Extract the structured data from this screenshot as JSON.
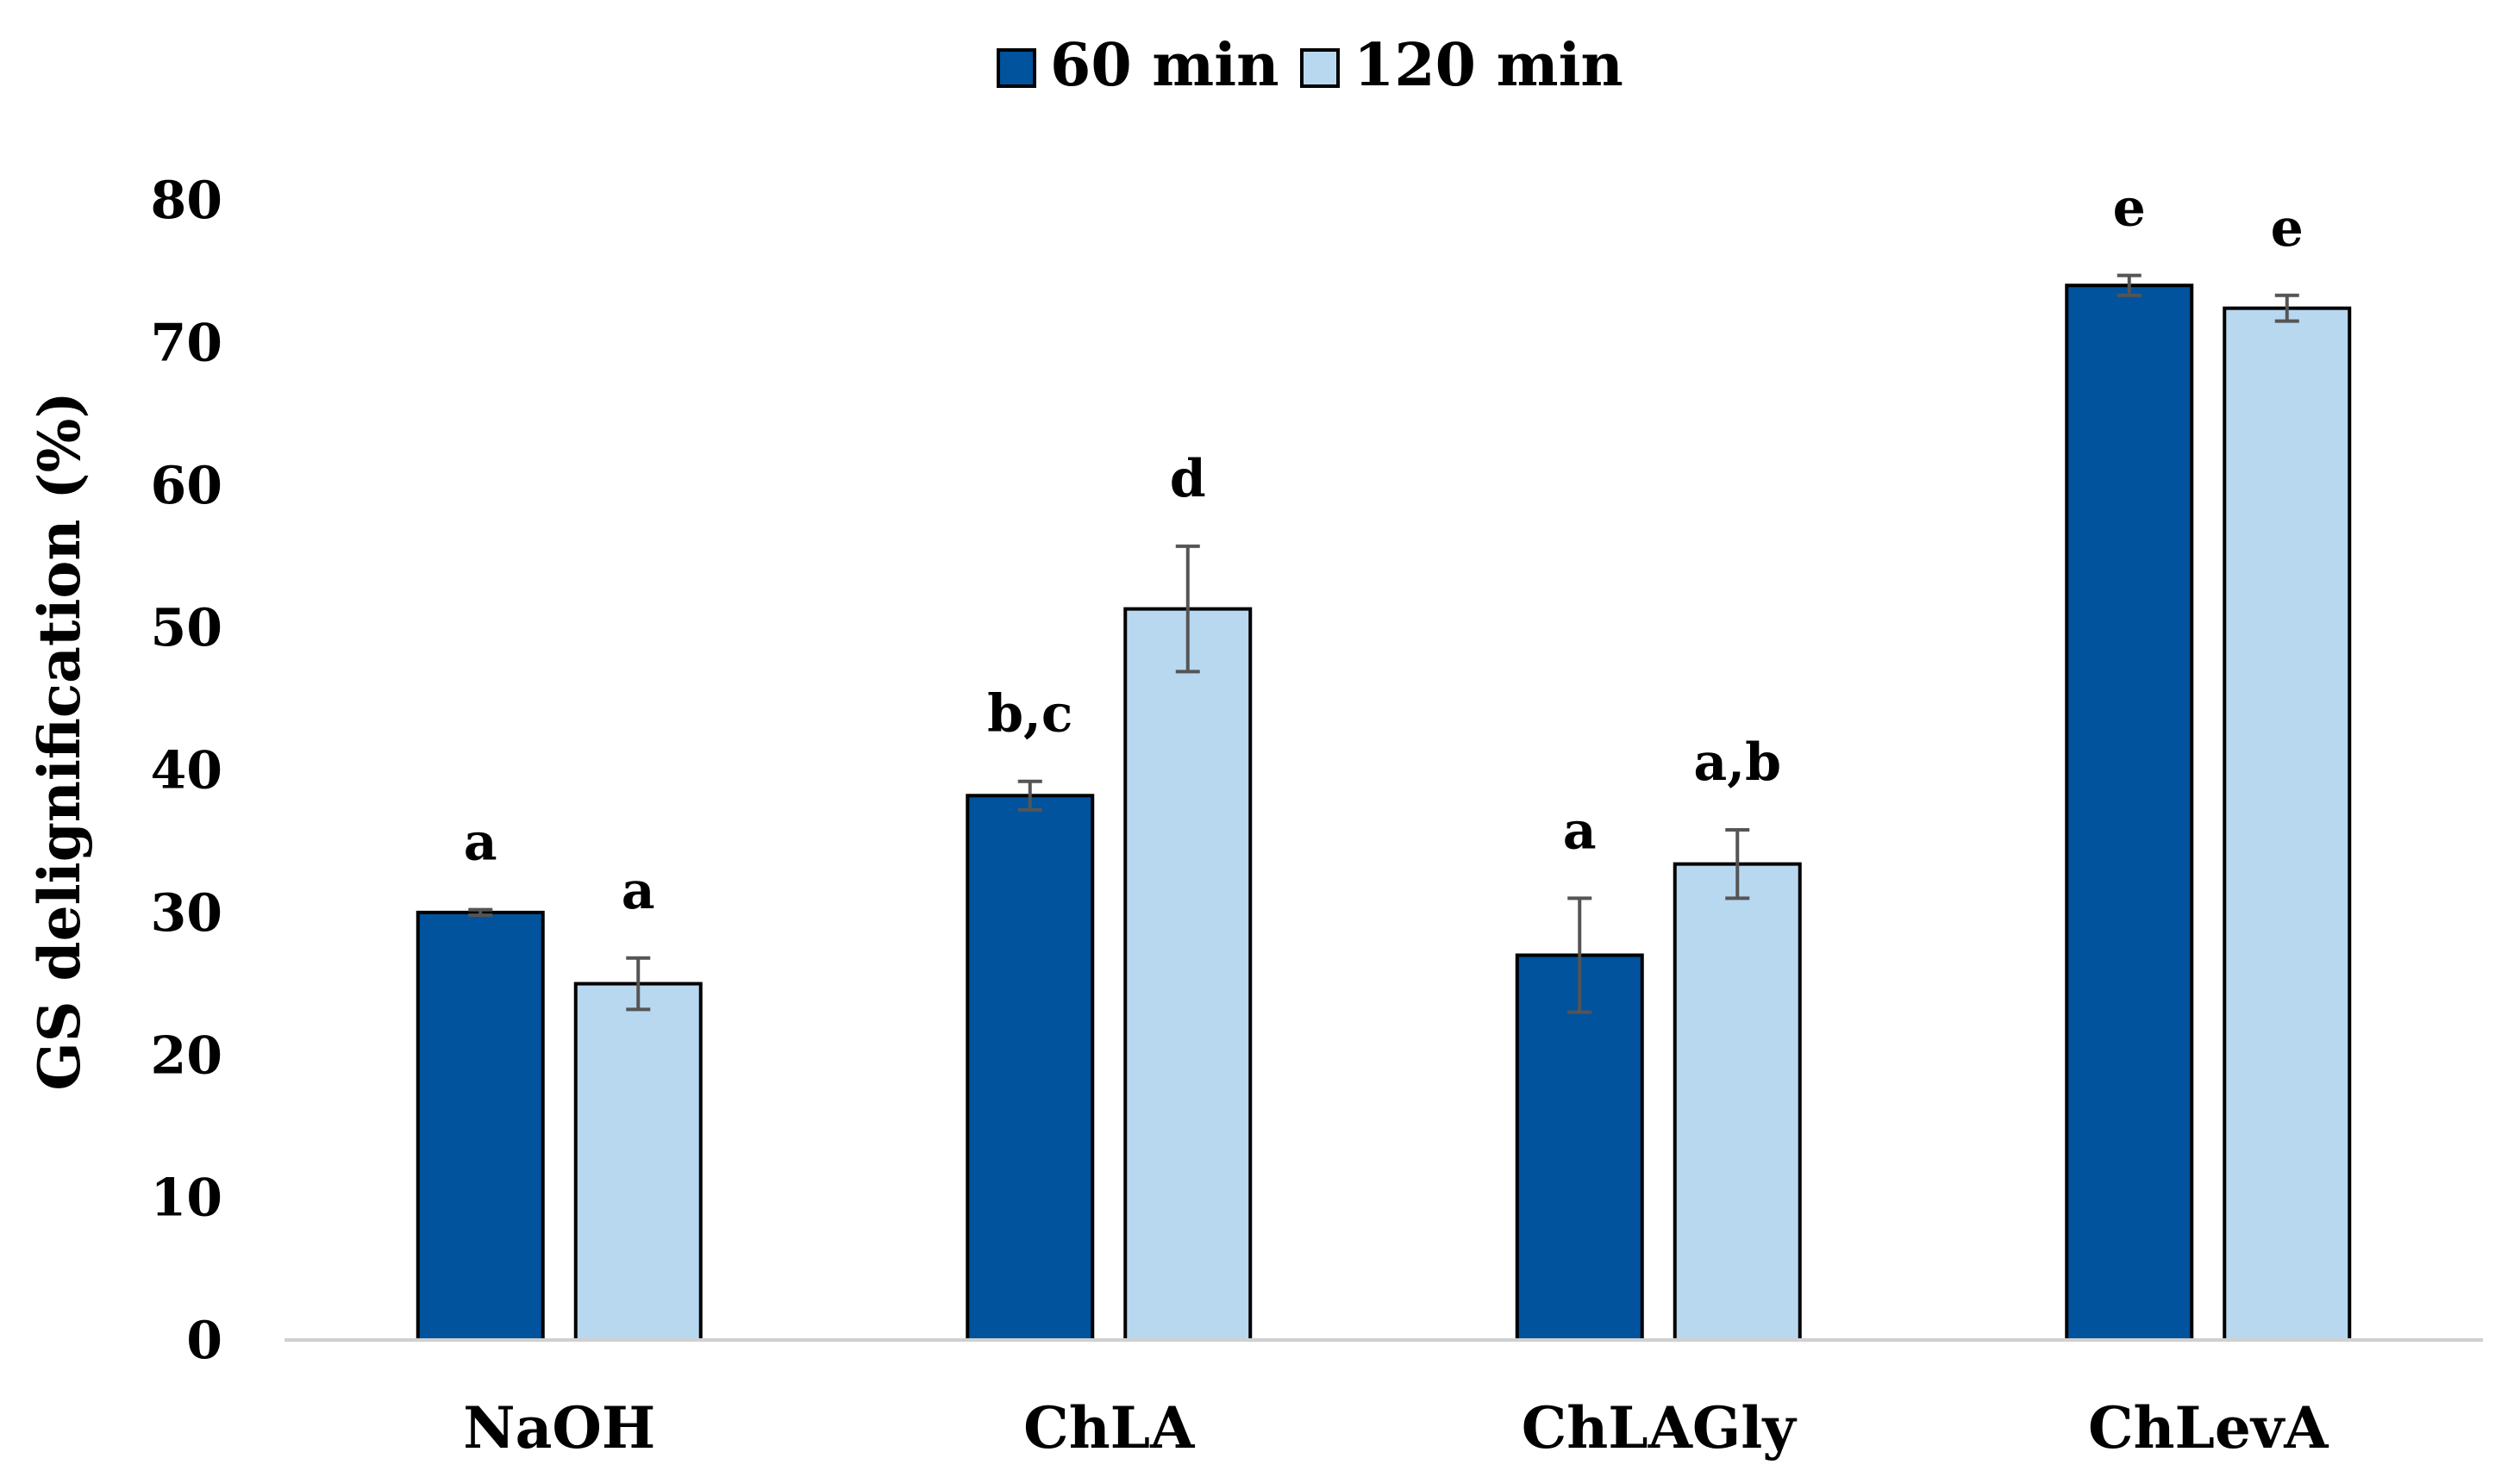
{
  "chart_data": {
    "type": "bar",
    "ylabel": "GS delignification (%)",
    "ylim": [
      0,
      80
    ],
    "yticks": [
      0,
      10,
      20,
      30,
      40,
      50,
      60,
      70,
      80
    ],
    "grid": false,
    "legend_position": "top",
    "categories": [
      "NaOH",
      "ChLA",
      "ChLAGly",
      "ChLevA"
    ],
    "series": [
      {
        "name": "60 min",
        "color": "#00539C",
        "values": [
          30.0,
          38.2,
          27.0,
          74.0
        ],
        "errors": [
          0.2,
          1.0,
          4.0,
          0.7
        ],
        "labels": [
          "a",
          "b,c",
          "a",
          "e"
        ]
      },
      {
        "name": "120 min",
        "color": "#B8D8F0",
        "values": [
          25.0,
          51.3,
          33.4,
          72.4
        ],
        "errors": [
          1.8,
          4.4,
          2.4,
          0.9
        ],
        "labels": [
          "a",
          "d",
          "a,b",
          "e"
        ]
      }
    ]
  }
}
